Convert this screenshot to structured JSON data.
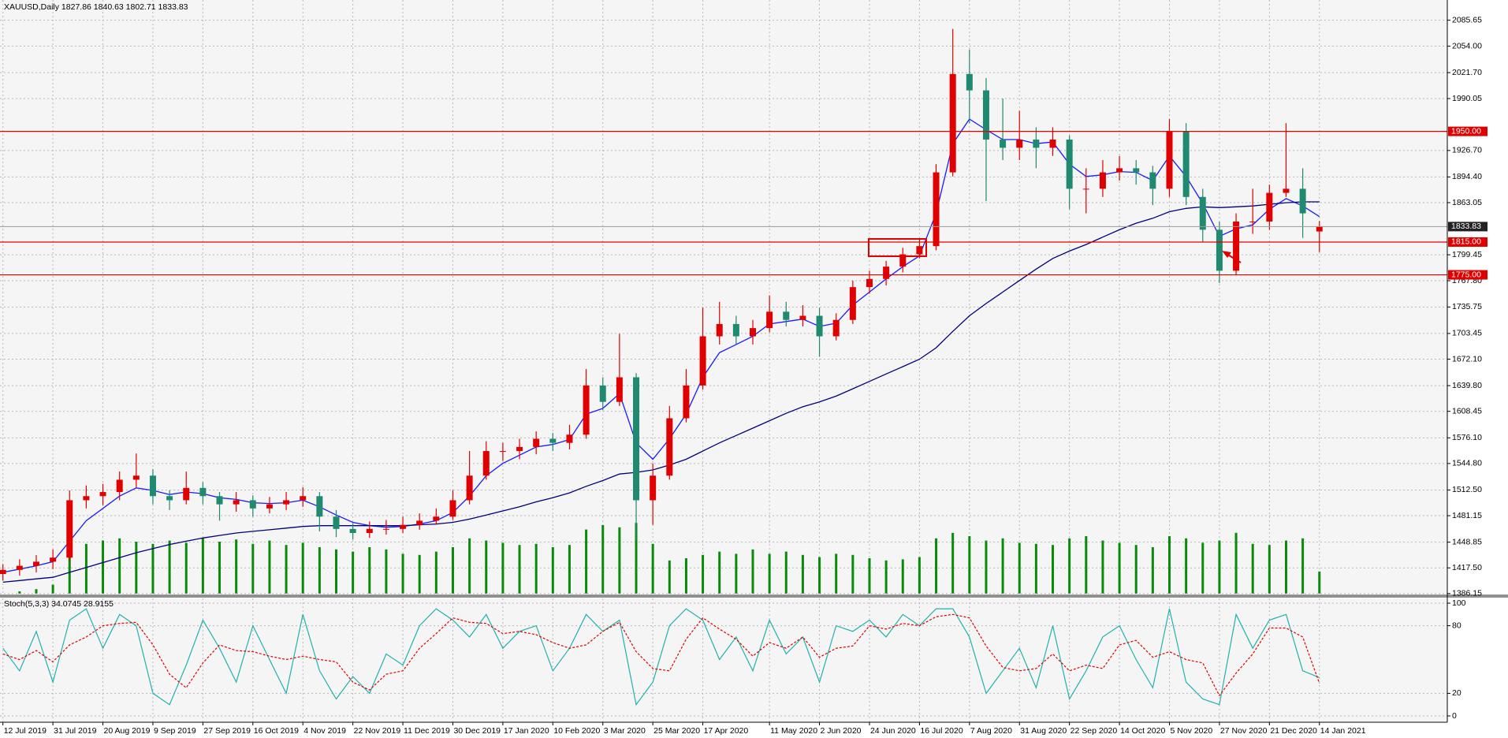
{
  "chart_data": {
    "type": "candlestick",
    "title": "XAUUSD,Daily  1827.86 1840.63 1802.71 1833.83",
    "up_color": "#e00000",
    "down_color": "#1f8a70",
    "categories": [
      "12 Jul 2019",
      null,
      null,
      "31 Jul 2019",
      null,
      null,
      "20 Aug 2019",
      null,
      null,
      "9 Sep 2019",
      null,
      null,
      "27 Sep 2019",
      null,
      null,
      "16 Oct 2019",
      null,
      null,
      "4 Nov 2019",
      null,
      null,
      "22 Nov 2019",
      null,
      null,
      "11 Dec 2019",
      null,
      null,
      "30 Dec 2019",
      null,
      null,
      "17 Jan 2020",
      null,
      null,
      "10 Feb 2020",
      null,
      null,
      "3 Mar 2020",
      null,
      null,
      "25 Mar 2020",
      null,
      null,
      "17 Apr 2020",
      null,
      null,
      null,
      "11 May 2020",
      null,
      null,
      "2 Jun 2020",
      null,
      null,
      "24 Jun 2020",
      null,
      null,
      "16 Jul 2020",
      null,
      null,
      "7 Aug 2020",
      null,
      null,
      "31 Aug 2020",
      null,
      null,
      "22 Sep 2020",
      null,
      null,
      "14 Oct 2020",
      null,
      null,
      "5 Nov 2020",
      null,
      null,
      "27 Nov 2020",
      null,
      null,
      "21 Dec 2020",
      null,
      null,
      "14 Jan 2021"
    ],
    "ohlc": [
      [
        1410,
        1422,
        1402,
        1415
      ],
      [
        1415,
        1428,
        1408,
        1420
      ],
      [
        1420,
        1433,
        1412,
        1425
      ],
      [
        1425,
        1440,
        1416,
        1430
      ],
      [
        1430,
        1512,
        1425,
        1500
      ],
      [
        1500,
        1518,
        1490,
        1505
      ],
      [
        1505,
        1520,
        1494,
        1510
      ],
      [
        1510,
        1535,
        1500,
        1525
      ],
      [
        1525,
        1557,
        1515,
        1530
      ],
      [
        1530,
        1538,
        1495,
        1505
      ],
      [
        1505,
        1512,
        1488,
        1500
      ],
      [
        1500,
        1535,
        1495,
        1515
      ],
      [
        1515,
        1522,
        1495,
        1505
      ],
      [
        1505,
        1510,
        1475,
        1495
      ],
      [
        1495,
        1510,
        1486,
        1500
      ],
      [
        1500,
        1506,
        1480,
        1490
      ],
      [
        1490,
        1504,
        1484,
        1495
      ],
      [
        1495,
        1510,
        1488,
        1500
      ],
      [
        1500,
        1516,
        1492,
        1505
      ],
      [
        1505,
        1510,
        1462,
        1480
      ],
      [
        1480,
        1488,
        1455,
        1465
      ],
      [
        1465,
        1472,
        1452,
        1460
      ],
      [
        1460,
        1474,
        1454,
        1465
      ],
      [
        1465,
        1476,
        1458,
        1465
      ],
      [
        1465,
        1480,
        1460,
        1470
      ],
      [
        1470,
        1484,
        1464,
        1475
      ],
      [
        1475,
        1490,
        1470,
        1480
      ],
      [
        1480,
        1512,
        1476,
        1500
      ],
      [
        1500,
        1560,
        1495,
        1530
      ],
      [
        1530,
        1572,
        1525,
        1560
      ],
      [
        1560,
        1570,
        1548,
        1560
      ],
      [
        1560,
        1575,
        1550,
        1565
      ],
      [
        1565,
        1584,
        1556,
        1575
      ],
      [
        1575,
        1582,
        1560,
        1570
      ],
      [
        1570,
        1592,
        1562,
        1580
      ],
      [
        1580,
        1660,
        1575,
        1640
      ],
      [
        1640,
        1650,
        1610,
        1620
      ],
      [
        1620,
        1703,
        1615,
        1650
      ],
      [
        1650,
        1655,
        1451,
        1500
      ],
      [
        1500,
        1545,
        1470,
        1530
      ],
      [
        1530,
        1615,
        1525,
        1600
      ],
      [
        1600,
        1660,
        1595,
        1640
      ],
      [
        1640,
        1735,
        1635,
        1700
      ],
      [
        1700,
        1742,
        1690,
        1715
      ],
      [
        1715,
        1725,
        1690,
        1700
      ],
      [
        1700,
        1720,
        1690,
        1710
      ],
      [
        1710,
        1750,
        1705,
        1730
      ],
      [
        1730,
        1742,
        1712,
        1720
      ],
      [
        1720,
        1738,
        1712,
        1725
      ],
      [
        1725,
        1735,
        1675,
        1700
      ],
      [
        1700,
        1728,
        1695,
        1720
      ],
      [
        1720,
        1768,
        1715,
        1760
      ],
      [
        1760,
        1780,
        1752,
        1770
      ],
      [
        1770,
        1792,
        1762,
        1785
      ],
      [
        1785,
        1808,
        1778,
        1800
      ],
      [
        1800,
        1818,
        1795,
        1810
      ],
      [
        1810,
        1910,
        1805,
        1900
      ],
      [
        1900,
        2075,
        1895,
        2020
      ],
      [
        2020,
        2050,
        1960,
        2000
      ],
      [
        2000,
        2015,
        1865,
        1940
      ],
      [
        1940,
        1990,
        1915,
        1930
      ],
      [
        1930,
        1975,
        1915,
        1940
      ],
      [
        1940,
        1955,
        1905,
        1930
      ],
      [
        1930,
        1955,
        1920,
        1940
      ],
      [
        1940,
        1945,
        1855,
        1880
      ],
      [
        1880,
        1905,
        1850,
        1880
      ],
      [
        1880,
        1915,
        1870,
        1900
      ],
      [
        1900,
        1920,
        1890,
        1905
      ],
      [
        1905,
        1915,
        1885,
        1900
      ],
      [
        1900,
        1908,
        1860,
        1880
      ],
      [
        1880,
        1965,
        1870,
        1950
      ],
      [
        1950,
        1960,
        1860,
        1870
      ],
      [
        1870,
        1880,
        1815,
        1830
      ],
      [
        1830,
        1840,
        1765,
        1780
      ],
      [
        1780,
        1850,
        1775,
        1840
      ],
      [
        1840,
        1880,
        1825,
        1840
      ],
      [
        1840,
        1885,
        1830,
        1875
      ],
      [
        1875,
        1960,
        1870,
        1880
      ],
      [
        1880,
        1905,
        1820,
        1850
      ],
      [
        1827.86,
        1840.63,
        1802.71,
        1833.83
      ]
    ],
    "ma": [
      {
        "color": "#1a1aff",
        "values": [
          1412,
          1416,
          1420,
          1425,
          1450,
          1475,
          1490,
          1505,
          1515,
          1512,
          1507,
          1510,
          1508,
          1503,
          1501,
          1497,
          1496,
          1497,
          1500,
          1492,
          1482,
          1473,
          1469,
          1467,
          1468,
          1471,
          1475,
          1485,
          1505,
          1530,
          1545,
          1555,
          1565,
          1568,
          1574,
          1605,
          1612,
          1630,
          1570,
          1550,
          1575,
          1605,
          1650,
          1680,
          1690,
          1700,
          1715,
          1718,
          1721,
          1712,
          1716,
          1738,
          1754,
          1770,
          1785,
          1798,
          1850,
          1935,
          1965,
          1952,
          1940,
          1940,
          1935,
          1937,
          1910,
          1895,
          1897,
          1901,
          1900,
          1890,
          1920,
          1895,
          1862,
          1822,
          1831,
          1836,
          1855,
          1868,
          1859,
          1846
        ]
      },
      {
        "color": "#00007a",
        "values": [
          1400,
          1402,
          1404,
          1406,
          1412,
          1418,
          1424,
          1430,
          1436,
          1441,
          1446,
          1450,
          1454,
          1457,
          1460,
          1462,
          1464,
          1466,
          1468,
          1469,
          1469,
          1469,
          1469,
          1469,
          1469,
          1470,
          1471,
          1473,
          1477,
          1482,
          1487,
          1492,
          1498,
          1503,
          1509,
          1517,
          1524,
          1532,
          1534,
          1537,
          1543,
          1550,
          1560,
          1570,
          1579,
          1588,
          1597,
          1606,
          1614,
          1620,
          1627,
          1636,
          1645,
          1654,
          1663,
          1672,
          1686,
          1706,
          1725,
          1740,
          1754,
          1768,
          1782,
          1795,
          1804,
          1812,
          1821,
          1830,
          1838,
          1844,
          1852,
          1856,
          1858,
          1857,
          1858,
          1859,
          1861,
          1863,
          1864,
          1864
        ]
      }
    ],
    "volume_color": "#0a8a0a",
    "volumes": [
      0,
      2,
      4,
      8,
      40,
      45,
      48,
      50,
      47,
      45,
      48,
      46,
      50,
      47,
      49,
      45,
      48,
      44,
      46,
      42,
      40,
      38,
      42,
      40,
      36,
      35,
      38,
      42,
      50,
      48,
      46,
      44,
      45,
      42,
      44,
      58,
      62,
      60,
      64,
      45,
      30,
      32,
      35,
      38,
      36,
      40,
      36,
      38,
      35,
      33,
      36,
      35,
      32,
      30,
      31,
      33,
      50,
      55,
      52,
      48,
      50,
      46,
      45,
      44,
      50,
      52,
      48,
      46,
      44,
      42,
      52,
      50,
      46,
      48,
      55,
      45,
      44,
      48,
      50,
      20
    ],
    "ylim": [
      1386.15,
      2085.65
    ],
    "yticks": [
      {
        "value": 2085.65,
        "label": "2085.65"
      },
      {
        "value": 2054,
        "label": "2054.00"
      },
      {
        "value": 2021.7,
        "label": "2021.70"
      },
      {
        "value": 1990.05,
        "label": "1990.05"
      },
      {
        "value": 1926.7,
        "label": "1926.70"
      },
      {
        "value": 1894.4,
        "label": "1894.40"
      },
      {
        "value": 1863.05,
        "label": "1863.05"
      },
      {
        "value": 1799.45,
        "label": "1799.45"
      },
      {
        "value": 1767.8,
        "label": "1767.80"
      },
      {
        "value": 1735.75,
        "label": "1735.75"
      },
      {
        "value": 1703.45,
        "label": "1703.45"
      },
      {
        "value": 1672.1,
        "label": "1672.10"
      },
      {
        "value": 1639.8,
        "label": "1639.80"
      },
      {
        "value": 1608.45,
        "label": "1608.45"
      },
      {
        "value": 1576.1,
        "label": "1576.10"
      },
      {
        "value": 1544.8,
        "label": "1544.80"
      },
      {
        "value": 1512.5,
        "label": "1512.50"
      },
      {
        "value": 1481.15,
        "label": "1481.15"
      },
      {
        "value": 1448.85,
        "label": "1448.85"
      },
      {
        "value": 1417.5,
        "label": "1417.50"
      },
      {
        "value": 1386.15,
        "label": "1386.15"
      }
    ],
    "levels": [
      {
        "value": 1950,
        "label": "1950.00"
      },
      {
        "value": 1815,
        "label": "1815.00"
      },
      {
        "value": 1775,
        "label": "1775.00"
      }
    ],
    "level_color": "#e00000",
    "current_price": 1833.83,
    "grid": true,
    "stoch": {
      "label": "Stoch(5,3,3) 34.0745 28.9155",
      "ylim": [
        0,
        100
      ],
      "yticks": [
        100,
        80,
        20,
        0
      ],
      "series": [
        {
          "color": "#20b2aa",
          "dash": false,
          "values": [
            60,
            40,
            75,
            30,
            85,
            95,
            60,
            90,
            80,
            20,
            10,
            45,
            85,
            60,
            30,
            80,
            50,
            20,
            90,
            40,
            15,
            35,
            20,
            55,
            45,
            80,
            95,
            85,
            70,
            90,
            60,
            75,
            80,
            40,
            60,
            90,
            75,
            85,
            10,
            30,
            80,
            95,
            85,
            50,
            70,
            40,
            85,
            55,
            70,
            30,
            80,
            75,
            85,
            70,
            90,
            80,
            95,
            95,
            70,
            20,
            40,
            60,
            25,
            80,
            15,
            40,
            70,
            80,
            50,
            25,
            95,
            30,
            15,
            10,
            90,
            60,
            85,
            90,
            40,
            34.0745
          ]
        },
        {
          "color": "#e00000",
          "dash": true,
          "values": [
            55,
            50,
            58,
            48,
            63,
            70,
            80,
            82,
            83,
            63,
            37,
            25,
            47,
            63,
            58,
            57,
            53,
            50,
            53,
            50,
            48,
            30,
            23,
            37,
            40,
            60,
            73,
            87,
            83,
            82,
            73,
            75,
            72,
            65,
            60,
            63,
            75,
            83,
            57,
            42,
            40,
            68,
            87,
            77,
            68,
            53,
            65,
            60,
            70,
            52,
            60,
            62,
            80,
            77,
            82,
            80,
            88,
            90,
            87,
            62,
            43,
            40,
            42,
            55,
            40,
            45,
            42,
            63,
            67,
            52,
            57,
            50,
            47,
            18,
            38,
            55,
            78,
            78,
            70,
            28.9155
          ]
        }
      ]
    }
  }
}
